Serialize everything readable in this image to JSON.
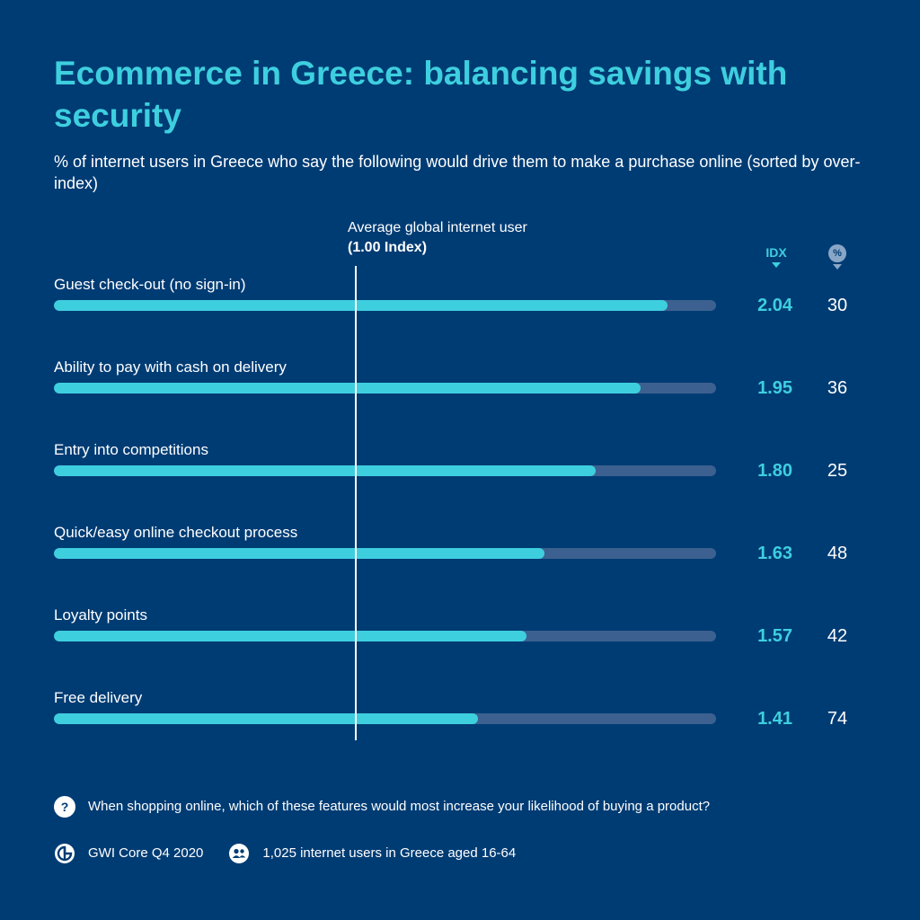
{
  "header": {
    "title": "Ecommerce in Greece: balancing savings with security",
    "subtitle": "% of internet users in Greece who say the following would drive them to make a purchase online (sorted by over-index)"
  },
  "reference": {
    "label": "Average global internet user",
    "value_label": "(1.00 Index)",
    "index_value": 1.0
  },
  "columns": {
    "idx_label": "IDX",
    "pct_label": "%"
  },
  "chart_data": {
    "type": "bar",
    "orientation": "horizontal",
    "categories": [
      "Guest check-out (no sign-in)",
      "Ability to pay with cash on delivery",
      "Entry into competitions",
      "Quick/easy online checkout process",
      "Loyalty points",
      "Free delivery"
    ],
    "series": [
      {
        "name": "IDX",
        "values": [
          2.04,
          1.95,
          1.8,
          1.63,
          1.57,
          1.41
        ],
        "display": [
          "2.04",
          "1.95",
          "1.80",
          "1.63",
          "1.57",
          "1.41"
        ]
      },
      {
        "name": "%",
        "values": [
          30,
          36,
          25,
          48,
          42,
          74
        ]
      }
    ],
    "reference_line": 1.0
  },
  "footer": {
    "question": "When shopping online, which of these features would most increase your likelihood of buying a product?",
    "source": "GWI Core Q4 2020",
    "sample": "1,025 internet users in Greece aged 16-64"
  },
  "colors": {
    "background": "#003c74",
    "accent": "#3ecfdf",
    "track": "#3c6190",
    "text": "#ffffff"
  },
  "icons": {
    "question": "question-mark-icon",
    "source": "gwi-logo-icon",
    "sample": "people-icon",
    "pct_badge": "percent-badge-icon"
  }
}
